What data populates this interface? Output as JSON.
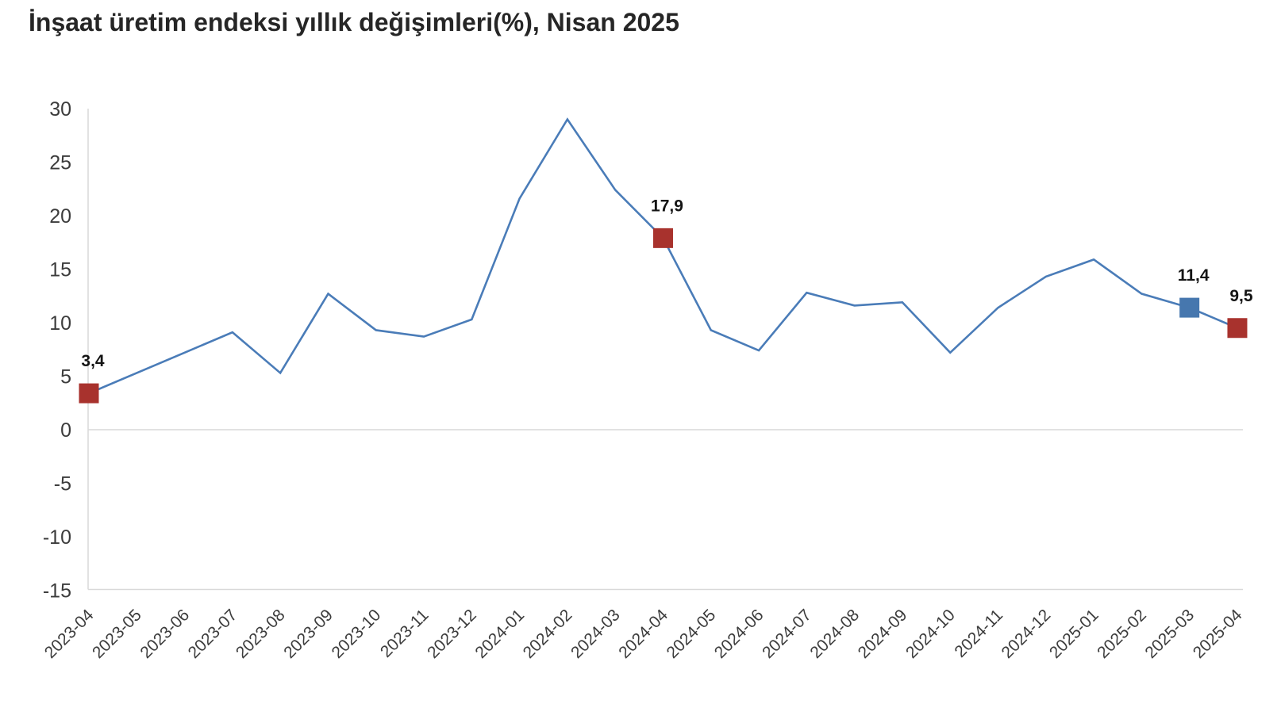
{
  "page": {
    "title": "İnşaat üretim endeksi yıllık değişimleri(%), Nisan 2025"
  },
  "chart_data": {
    "type": "line",
    "title": "İnşaat üretim endeksi yıllık değişimleri(%), Nisan 2025",
    "xlabel": "",
    "ylabel": "",
    "x": [
      "2023-04",
      "2023-05",
      "2023-06",
      "2023-07",
      "2023-08",
      "2023-09",
      "2023-10",
      "2023-11",
      "2023-12",
      "2024-01",
      "2024-02",
      "2024-03",
      "2024-04",
      "2024-05",
      "2024-06",
      "2024-07",
      "2024-08",
      "2024-09",
      "2024-10",
      "2024-11",
      "2024-12",
      "2025-01",
      "2025-02",
      "2025-03",
      "2025-04"
    ],
    "series": [
      {
        "name": "İnşaat üretim endeksi yıllık değişim (%)",
        "values": [
          3.4,
          5.3,
          7.2,
          9.1,
          5.3,
          12.7,
          9.3,
          8.7,
          10.3,
          21.6,
          29.0,
          22.4,
          17.9,
          9.3,
          7.4,
          12.8,
          11.6,
          11.9,
          7.2,
          11.4,
          14.3,
          15.9,
          12.7,
          11.4,
          9.5
        ]
      }
    ],
    "labeled_points": [
      {
        "x": "2023-04",
        "value": 3.4,
        "label": "3,4",
        "marker": "red-square"
      },
      {
        "x": "2024-04",
        "value": 17.9,
        "label": "17,9",
        "marker": "red-square"
      },
      {
        "x": "2025-03",
        "value": 11.4,
        "label": "11,4",
        "marker": "blue-square"
      },
      {
        "x": "2025-04",
        "value": 9.5,
        "label": "9,5",
        "marker": "red-square"
      }
    ],
    "ylim": [
      -15,
      30
    ],
    "yticks": [
      30,
      25,
      20,
      15,
      10,
      5,
      0,
      -5,
      -10,
      -15
    ],
    "grid": "zero-line-only",
    "legend_position": "none",
    "colors": {
      "line": "#4A7CB8",
      "red_marker": "#A8322D",
      "blue_marker": "#4677AE",
      "axis_line": "#D9D9D9",
      "tick_text": "#3C3C3C",
      "title_text": "#262626",
      "point_label_text": "#141414",
      "background": "#FFFFFF"
    }
  }
}
